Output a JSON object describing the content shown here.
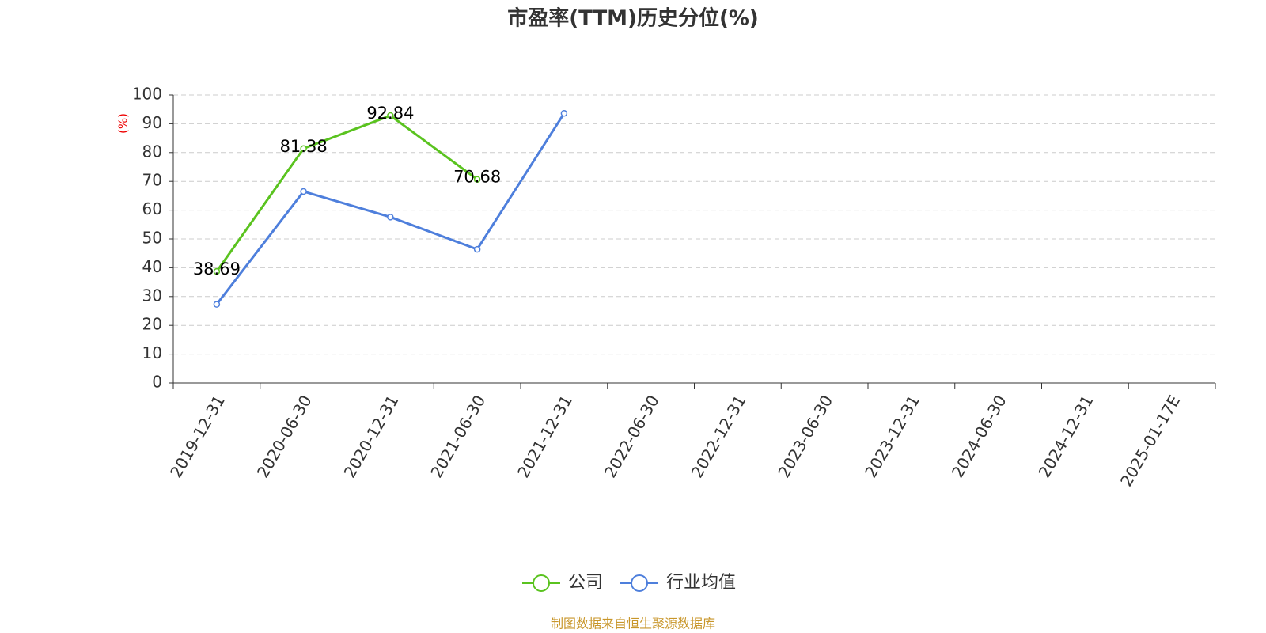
{
  "chart_data": {
    "type": "line",
    "title": "市盈率(TTM)历史分位(%)",
    "y_label": "(%)",
    "categories": [
      "2019-12-31",
      "2020-06-30",
      "2020-12-31",
      "2021-06-30",
      "2021-12-31",
      "2022-06-30",
      "2022-12-31",
      "2023-06-30",
      "2023-12-31",
      "2024-06-30",
      "2024-12-31",
      "2025-01-17E"
    ],
    "series": [
      {
        "name": "公司",
        "color": "#5ac31f",
        "show_labels": true,
        "values": [
          38.69,
          81.38,
          92.84,
          70.68,
          null,
          null,
          null,
          null,
          null,
          null,
          null,
          null
        ]
      },
      {
        "name": "行业均值",
        "color": "#4e7fdc",
        "show_labels": false,
        "values": [
          27.3,
          66.5,
          57.6,
          46.4,
          93.6,
          null,
          null,
          null,
          null,
          null,
          null,
          null
        ]
      }
    ],
    "ylim": [
      0,
      100
    ],
    "yticks": [
      0,
      10,
      20,
      30,
      40,
      50,
      60,
      70,
      80,
      90,
      100
    ],
    "grid": true,
    "source": "制图数据来自恒生聚源数据库"
  }
}
